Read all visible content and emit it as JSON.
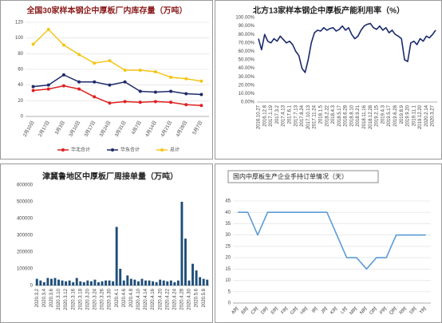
{
  "chart_data": [
    {
      "type": "line",
      "title": "全国30家样本钢企中厚板厂内库存量（万吨）",
      "categories": [
        "2月10日",
        "2月17日",
        "3月3日",
        "3月10日",
        "3月17日",
        "3月24日",
        "3月31日",
        "4月7日",
        "4月14日",
        "4月21日",
        "4月28日",
        "5月7日"
      ],
      "series": [
        {
          "name": "华北合计",
          "color": "#e02020",
          "values": [
            33,
            35,
            39,
            35,
            25,
            17,
            19,
            18,
            19,
            18,
            15,
            14
          ]
        },
        {
          "name": "华东合计",
          "color": "#1f2a6b",
          "values": [
            38,
            40,
            53,
            44,
            44,
            40,
            44,
            32,
            31,
            32,
            29,
            28
          ]
        },
        {
          "name": "总计",
          "color": "#f5c518",
          "values": [
            92,
            111,
            91,
            79,
            68,
            71,
            59,
            59,
            57,
            50,
            48,
            45
          ]
        }
      ],
      "ylim": [
        0,
        120
      ],
      "yticks": [
        0,
        20,
        40,
        60,
        80,
        100,
        120
      ],
      "grid": true,
      "markers": true,
      "legend": "bottom"
    },
    {
      "type": "line",
      "title": "北方13家样本钢企中厚板产能利用率（%）",
      "color": "#1a2a6c",
      "categories": [
        "2016.10.27",
        null,
        "2016.12.8",
        null,
        "2017.1.19",
        null,
        "2017.3.2",
        null,
        "2017.4.13",
        null,
        "2017.6.1",
        null,
        "2017.7.13",
        null,
        "2017.8.24",
        null,
        "2017.10.13",
        null,
        "2017.11.24",
        null,
        "2018.1.5",
        null,
        "2018.2.22",
        null,
        "2018.4.3",
        null,
        "2018.5.17",
        null,
        "2018.6.28",
        null,
        "2018.8.10",
        null,
        "2018.9.21",
        null,
        "2018.11.16",
        null,
        "2018.12.28",
        null,
        "2019.2.15",
        null,
        "2019.4.3",
        null,
        "2019.5.17",
        null,
        "2019.6.28",
        null,
        "2019.8.9",
        null,
        "2019.9.20",
        null,
        "2019.11.1",
        null,
        "2019.12.20",
        null,
        "2020.2.14",
        null,
        "2020.3.27",
        null
      ],
      "values": [
        75,
        62,
        80,
        72,
        70,
        75,
        72,
        78,
        74,
        70,
        72,
        68,
        60,
        55,
        40,
        35,
        50,
        70,
        82,
        85,
        84,
        88,
        85,
        87,
        88,
        84,
        86,
        90,
        85,
        88,
        80,
        75,
        78,
        85,
        90,
        92,
        93,
        88,
        86,
        90,
        85,
        88,
        82,
        85,
        80,
        78,
        75,
        50,
        48,
        70,
        72,
        68,
        75,
        72,
        78,
        76,
        80,
        85
      ],
      "ylim": [
        0,
        100
      ],
      "yticks": [
        {
          "value": 0,
          "label": "0.00%"
        },
        {
          "value": 10,
          "label": "10.00%"
        },
        {
          "value": 20,
          "label": "20.00%"
        },
        {
          "value": 30,
          "label": "30.00%"
        },
        {
          "value": 40,
          "label": "40.00%"
        },
        {
          "value": 50,
          "label": "50.00%"
        },
        {
          "value": 60,
          "label": "60.00%"
        },
        {
          "value": 70,
          "label": "70.00%"
        },
        {
          "value": 80,
          "label": "80.00%"
        },
        {
          "value": 90,
          "label": "90.00%"
        },
        {
          "value": 100,
          "label": "100.00%"
        }
      ],
      "grid": false
    },
    {
      "type": "bar",
      "title": "津冀鲁地区中厚板厂周接单量（万吨）",
      "color": "#1f4e79",
      "categories": [
        "2020.3.2",
        null,
        "2020.3.4",
        null,
        "2020.3.6",
        null,
        "2020.3.10",
        null,
        "2020.3.12",
        null,
        "2020.3.16",
        null,
        "2020.3.18",
        null,
        "2020.3.20",
        null,
        "2020.3.24",
        null,
        "2020.3.26",
        null,
        "2020.3.30",
        null,
        "2020.4.1",
        null,
        "2020.4.6",
        null,
        "2020.4.8",
        null,
        "2020.4.10",
        null,
        "2020.4.14",
        null,
        "2020.4.16",
        null,
        "2020.4.20",
        null,
        "2020.4.22",
        null,
        "2020.4.24",
        null,
        "2020.4.28",
        null,
        "2020.4.30",
        null,
        "2020.5.6",
        null,
        "2020.5.8",
        null
      ],
      "values": [
        40000,
        30000,
        20000,
        45000,
        40000,
        45000,
        35000,
        30000,
        25000,
        30000,
        20000,
        45000,
        25000,
        20000,
        30000,
        25000,
        35000,
        20000,
        25000,
        30000,
        30000,
        25000,
        350000,
        100000,
        30000,
        60000,
        40000,
        35000,
        25000,
        40000,
        30000,
        30000,
        25000,
        20000,
        35000,
        30000,
        25000,
        30000,
        20000,
        30000,
        500000,
        280000,
        30000,
        130000,
        90000,
        50000,
        40000,
        35000
      ],
      "ylim": [
        0,
        600000
      ],
      "yticks": [
        0,
        100000,
        200000,
        300000,
        400000,
        500000,
        600000
      ],
      "grid": false
    },
    {
      "type": "line",
      "title": "国内中厚板生产企业手持订单情况（天）",
      "color": "#5b9bd5",
      "categories": [
        "A时",
        "B时",
        "C时",
        "D时",
        "E时",
        "F时",
        "G时",
        "H时",
        "I时",
        "J时",
        "K时",
        "L时",
        "M时",
        "N时",
        "O时",
        "P时",
        "Q时",
        "R时",
        "S时",
        "T时"
      ],
      "values": [
        40,
        40,
        30,
        40,
        40,
        40,
        40,
        40,
        40,
        40,
        30,
        20,
        20,
        15,
        20,
        20,
        30,
        30,
        30,
        30
      ],
      "ylim": [
        0,
        45
      ],
      "yticks": [
        0,
        5,
        10,
        15,
        20,
        25,
        30,
        35,
        40,
        45
      ],
      "grid": true
    }
  ]
}
